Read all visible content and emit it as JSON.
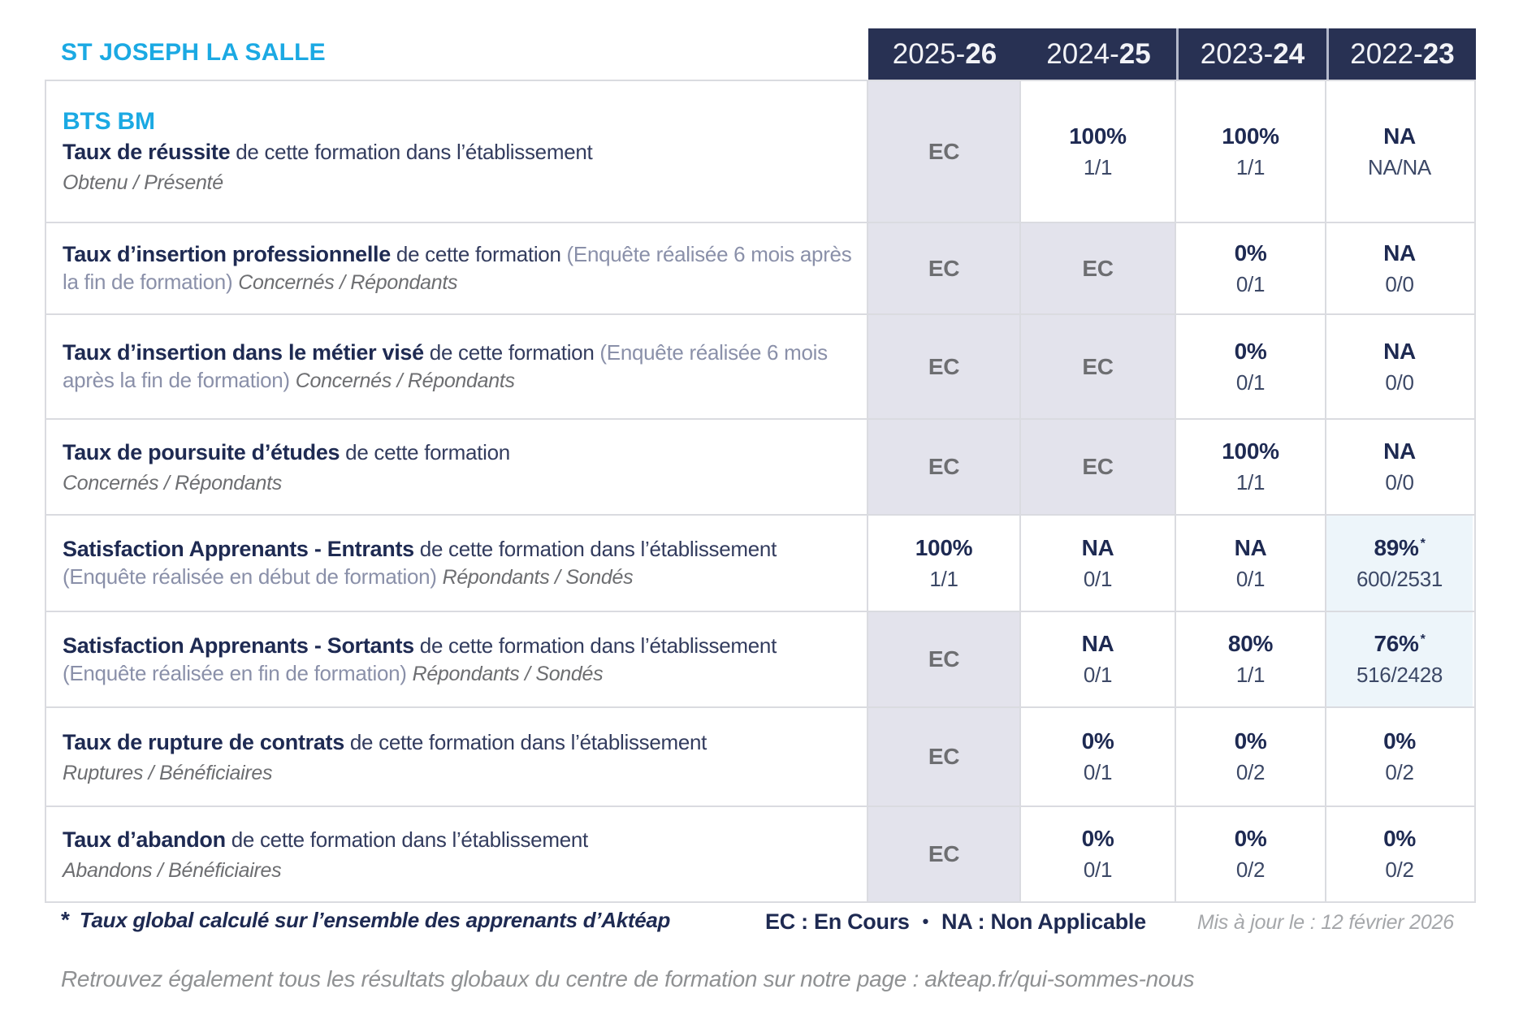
{
  "school": "ST JOSEPH LA SALLE",
  "years": [
    {
      "prefix": "2025-",
      "suffix": "26"
    },
    {
      "prefix": "2024-",
      "suffix": "25"
    },
    {
      "prefix": "2023-",
      "suffix": "24"
    },
    {
      "prefix": "2022-",
      "suffix": "23"
    }
  ],
  "rows": [
    {
      "program": "BTS BM",
      "title": "Taux de réussite",
      "desc": " de cette formation dans l’établissement",
      "subtitle": "Obtenu / Présenté",
      "cells": [
        {
          "main": "EC"
        },
        {
          "main": "100%",
          "sub": "1/1"
        },
        {
          "main": "100%",
          "sub": "1/1"
        },
        {
          "main": "NA",
          "sub": "NA/NA"
        }
      ]
    },
    {
      "title": "Taux d’insertion professionnelle",
      "desc": " de cette formation ",
      "paren": "(Enquête réalisée 6 mois après la fin de formation) ",
      "tail": "Concernés / Répondants",
      "cells": [
        {
          "main": "EC"
        },
        {
          "main": "EC"
        },
        {
          "main": "0%",
          "sub": "0/1"
        },
        {
          "main": "NA",
          "sub": "0/0"
        }
      ]
    },
    {
      "title": "Taux d’insertion dans le métier visé",
      "desc": " de cette formation ",
      "paren": "(Enquête réalisée 6 mois après la fin de formation) ",
      "tail": "Concernés / Répondants",
      "cells": [
        {
          "main": "EC"
        },
        {
          "main": "EC"
        },
        {
          "main": "0%",
          "sub": "0/1"
        },
        {
          "main": "NA",
          "sub": "0/0"
        }
      ]
    },
    {
      "title": "Taux de poursuite d’études",
      "desc": " de cette formation",
      "subtitle": "Concernés / Répondants",
      "cells": [
        {
          "main": "EC"
        },
        {
          "main": "EC"
        },
        {
          "main": "100%",
          "sub": "1/1"
        },
        {
          "main": "NA",
          "sub": "0/0"
        }
      ]
    },
    {
      "title": "Satisfaction Apprenants - Entrants",
      "desc": " de cette formation dans l’établissement ",
      "paren": "(Enquête réalisée en début de formation) ",
      "tail": "Répondants / Sondés",
      "cells": [
        {
          "main": "100%",
          "sub": "1/1"
        },
        {
          "main": "NA",
          "sub": "0/1"
        },
        {
          "main": "NA",
          "sub": "0/1"
        },
        {
          "main": "89%",
          "star": "*",
          "sub": "600/2531"
        }
      ]
    },
    {
      "title": "Satisfaction Apprenants - Sortants",
      "desc": " de cette formation dans l’établissement ",
      "paren": "(Enquête réalisée en fin de formation) ",
      "tail": "Répondants / Sondés",
      "cells": [
        {
          "main": "EC"
        },
        {
          "main": "NA",
          "sub": "0/1"
        },
        {
          "main": "80%",
          "sub": "1/1"
        },
        {
          "main": "76%",
          "star": "*",
          "sub": "516/2428"
        }
      ]
    },
    {
      "title": "Taux de rupture de contrats",
      "desc": " de cette formation dans l’établissement",
      "subtitle": "Ruptures / Bénéficiaires",
      "cells": [
        {
          "main": "EC"
        },
        {
          "main": "0%",
          "sub": "0/1"
        },
        {
          "main": "0%",
          "sub": "0/2"
        },
        {
          "main": "0%",
          "sub": "0/2"
        }
      ]
    },
    {
      "title": "Taux d’abandon",
      "desc": " de cette formation dans l’établissement",
      "subtitle": "Abandons / Bénéficiaires",
      "cells": [
        {
          "main": "EC"
        },
        {
          "main": "0%",
          "sub": "0/1"
        },
        {
          "main": "0%",
          "sub": "0/2"
        },
        {
          "main": "0%",
          "sub": "0/2"
        }
      ]
    }
  ],
  "footer": {
    "star": "*",
    "note": "Taux global calculé sur l’ensemble des apprenants d’Aktéap",
    "legend_ec": "EC : En Cours",
    "bullet": "•",
    "legend_na": "NA : Non Applicable",
    "updated": "Mis à jour le : 12 février 2026",
    "bottom": "Retrouvez également tous les résultats globaux du centre de formation sur notre page : akteap.fr/qui-sommes-nous"
  },
  "colors": {
    "header_navy": "#283153",
    "text_navy": "#1e2a52",
    "cyan": "#1ba9e3",
    "ec_gray": "#6d6e71",
    "ec_bg": "#e3e3ec",
    "highlight_bg": "#edf5fa",
    "border": "#dadbe0"
  }
}
